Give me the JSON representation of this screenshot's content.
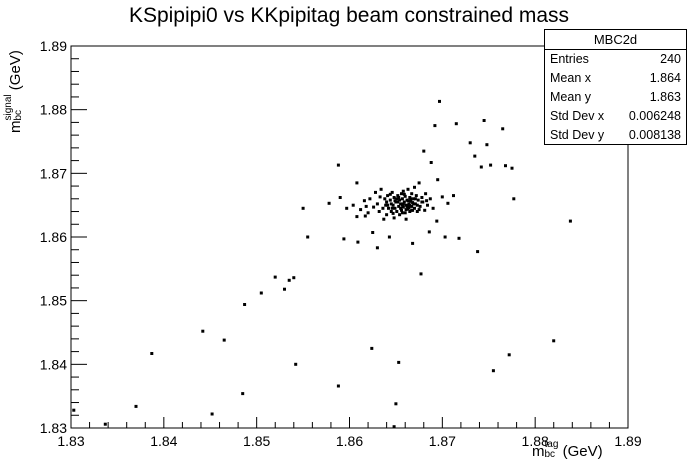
{
  "chart_data": {
    "type": "scatter",
    "title": "KSpipipi0 vs KKpipitag beam constrained mass",
    "xlabel": {
      "main": "m",
      "sub": "bc",
      "sup": "tag",
      "unit": "(GeV)"
    },
    "ylabel": {
      "main": "m",
      "sub": "bc",
      "sup": "signal",
      "unit": "(GeV)"
    },
    "xlim": [
      1.83,
      1.89
    ],
    "ylim": [
      1.83,
      1.89
    ],
    "xticks": [
      "1.83",
      "1.84",
      "1.85",
      "1.86",
      "1.87",
      "1.88",
      "1.89"
    ],
    "yticks": [
      "1.83",
      "1.84",
      "1.85",
      "1.86",
      "1.87",
      "1.88",
      "1.89"
    ],
    "grid": false,
    "stats": {
      "name": "MBC2d",
      "rows": [
        {
          "label": "Entries",
          "value": "240"
        },
        {
          "label": "Mean x",
          "value": "1.864"
        },
        {
          "label": "Mean y",
          "value": "1.863"
        },
        {
          "label": "Std Dev x",
          "value": "0.006248"
        },
        {
          "label": "Std Dev y",
          "value": "0.008138"
        }
      ]
    },
    "points": [
      [
        1.8303,
        1.8328
      ],
      [
        1.8337,
        1.8306
      ],
      [
        1.837,
        1.8334
      ],
      [
        1.8387,
        1.8417
      ],
      [
        1.8442,
        1.8452
      ],
      [
        1.8452,
        1.8322
      ],
      [
        1.8465,
        1.8438
      ],
      [
        1.8485,
        1.8354
      ],
      [
        1.8487,
        1.8494
      ],
      [
        1.8505,
        1.8512
      ],
      [
        1.852,
        1.8537
      ],
      [
        1.853,
        1.8518
      ],
      [
        1.8535,
        1.8532
      ],
      [
        1.854,
        1.8536
      ],
      [
        1.8542,
        1.84
      ],
      [
        1.855,
        1.8645
      ],
      [
        1.8555,
        1.86
      ],
      [
        1.8578,
        1.8653
      ],
      [
        1.8588,
        1.8713
      ],
      [
        1.8588,
        1.8366
      ],
      [
        1.859,
        1.8662
      ],
      [
        1.8594,
        1.8597
      ],
      [
        1.8597,
        1.8645
      ],
      [
        1.8604,
        1.865
      ],
      [
        1.8608,
        1.8685
      ],
      [
        1.8609,
        1.8592
      ],
      [
        1.8612,
        1.8643
      ],
      [
        1.8617,
        1.8633
      ],
      [
        1.8618,
        1.8648
      ],
      [
        1.862,
        1.8638
      ],
      [
        1.8622,
        1.866
      ],
      [
        1.8624,
        1.8425
      ],
      [
        1.8625,
        1.8607
      ],
      [
        1.8628,
        1.867
      ],
      [
        1.863,
        1.8652
      ],
      [
        1.863,
        1.8583
      ],
      [
        1.8632,
        1.864
      ],
      [
        1.8634,
        1.8675
      ],
      [
        1.8636,
        1.8645
      ],
      [
        1.8637,
        1.8628
      ],
      [
        1.8638,
        1.866
      ],
      [
        1.864,
        1.8655
      ],
      [
        1.864,
        1.8635
      ],
      [
        1.8641,
        1.8665
      ],
      [
        1.8642,
        1.8645
      ],
      [
        1.8643,
        1.86
      ],
      [
        1.8644,
        1.8658
      ],
      [
        1.8645,
        1.864
      ],
      [
        1.8646,
        1.867
      ],
      [
        1.8647,
        1.865
      ],
      [
        1.8648,
        1.863
      ],
      [
        1.8648,
        1.8662
      ],
      [
        1.8649,
        1.8645
      ],
      [
        1.865,
        1.8655
      ],
      [
        1.865,
        1.8338
      ],
      [
        1.8651,
        1.864
      ],
      [
        1.8652,
        1.8665
      ],
      [
        1.8653,
        1.8648
      ],
      [
        1.8653,
        1.8403
      ],
      [
        1.8654,
        1.8658
      ],
      [
        1.8654,
        1.8635
      ],
      [
        1.8655,
        1.8652
      ],
      [
        1.8656,
        1.8668
      ],
      [
        1.8656,
        1.8642
      ],
      [
        1.8657,
        1.866
      ],
      [
        1.8658,
        1.8647
      ],
      [
        1.8658,
        1.8672
      ],
      [
        1.8659,
        1.8655
      ],
      [
        1.866,
        1.8638
      ],
      [
        1.866,
        1.8664
      ],
      [
        1.8661,
        1.865
      ],
      [
        1.8661,
        1.8628
      ],
      [
        1.8662,
        1.8658
      ],
      [
        1.8663,
        1.8644
      ],
      [
        1.8663,
        1.8675
      ],
      [
        1.8664,
        1.8652
      ],
      [
        1.8665,
        1.8662
      ],
      [
        1.8665,
        1.864
      ],
      [
        1.8666,
        1.8656
      ],
      [
        1.8667,
        1.8648
      ],
      [
        1.8667,
        1.8668
      ],
      [
        1.8668,
        1.859
      ],
      [
        1.8668,
        1.8654
      ],
      [
        1.8669,
        1.866
      ],
      [
        1.867,
        1.8645
      ],
      [
        1.867,
        1.8678
      ],
      [
        1.8671,
        1.8652
      ],
      [
        1.8672,
        1.8665
      ],
      [
        1.8673,
        1.864
      ],
      [
        1.8674,
        1.8658
      ],
      [
        1.8675,
        1.8685
      ],
      [
        1.8676,
        1.8648
      ],
      [
        1.8677,
        1.8542
      ],
      [
        1.8678,
        1.8662
      ],
      [
        1.8679,
        1.8655
      ],
      [
        1.868,
        1.8735
      ],
      [
        1.8681,
        1.8642
      ],
      [
        1.8682,
        1.8668
      ],
      [
        1.8684,
        1.865
      ],
      [
        1.8686,
        1.8608
      ],
      [
        1.8687,
        1.866
      ],
      [
        1.8688,
        1.8717
      ],
      [
        1.869,
        1.8645
      ],
      [
        1.8692,
        1.8775
      ],
      [
        1.8694,
        1.8625
      ],
      [
        1.8695,
        1.869
      ],
      [
        1.8697,
        1.8813
      ],
      [
        1.87,
        1.8663
      ],
      [
        1.8703,
        1.86
      ],
      [
        1.8706,
        1.8653
      ],
      [
        1.8712,
        1.8665
      ],
      [
        1.8715,
        1.8778
      ],
      [
        1.8718,
        1.8598
      ],
      [
        1.873,
        1.8748
      ],
      [
        1.8735,
        1.8727
      ],
      [
        1.8738,
        1.8577
      ],
      [
        1.8742,
        1.871
      ],
      [
        1.8745,
        1.8783
      ],
      [
        1.8748,
        1.8745
      ],
      [
        1.8752,
        1.8713
      ],
      [
        1.8755,
        1.839
      ],
      [
        1.8765,
        1.877
      ],
      [
        1.8768,
        1.8712
      ],
      [
        1.8772,
        1.8415
      ],
      [
        1.8775,
        1.8708
      ],
      [
        1.8777,
        1.866
      ],
      [
        1.882,
        1.8437
      ],
      [
        1.8838,
        1.8625
      ],
      [
        1.8648,
        1.8302
      ],
      [
        1.8608,
        1.8632
      ],
      [
        1.8616,
        1.8657
      ],
      [
        1.8626,
        1.8647
      ],
      [
        1.8633,
        1.8663
      ],
      [
        1.8639,
        1.865
      ],
      [
        1.8644,
        1.8667
      ],
      [
        1.8647,
        1.8637
      ],
      [
        1.8651,
        1.866
      ],
      [
        1.8655,
        1.8645
      ],
      [
        1.8657,
        1.865
      ],
      [
        1.8659,
        1.8667
      ],
      [
        1.8661,
        1.8643
      ],
      [
        1.8663,
        1.8657
      ],
      [
        1.8665,
        1.865
      ],
      [
        1.8667,
        1.8642
      ],
      [
        1.8669,
        1.8652
      ],
      [
        1.8671,
        1.866
      ],
      [
        1.8673,
        1.865
      ],
      [
        1.8675,
        1.8643
      ],
      [
        1.8678,
        1.8655
      ],
      [
        1.8683,
        1.8657
      ],
      [
        1.8645,
        1.8652
      ],
      [
        1.8649,
        1.8657
      ],
      [
        1.8653,
        1.8662
      ],
      [
        1.8657,
        1.8638
      ],
      [
        1.8662,
        1.8648
      ],
      [
        1.8666,
        1.866
      ],
      [
        1.8641,
        1.865
      ],
      [
        1.8646,
        1.8645
      ],
      [
        1.8652,
        1.8655
      ],
      [
        1.8658,
        1.8652
      ],
      [
        1.8664,
        1.8646
      ],
      [
        1.8668,
        1.8642
      ]
    ]
  }
}
